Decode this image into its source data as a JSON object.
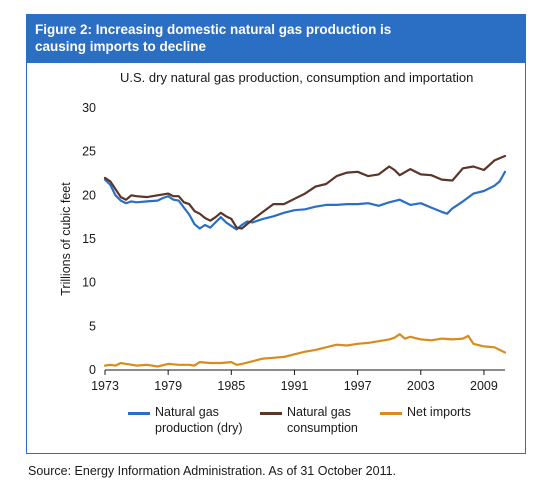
{
  "figure": {
    "title": "Figure 2: Increasing domestic natural gas production is causing imports to decline",
    "frame_color": "#2a6fc4"
  },
  "source": "Source: Energy Information Administration. As of 31 October 2011.",
  "chart_data": {
    "type": "line",
    "title": "U.S. dry natural gas production, consumption and importation",
    "xlabel": "",
    "ylabel": "Trillions of cubic feet",
    "xlim": [
      1973,
      2011
    ],
    "ylim": [
      0,
      30
    ],
    "x_ticks": [
      "1973",
      "1979",
      "1985",
      "1991",
      "1997",
      "2003",
      "2009"
    ],
    "y_ticks": [
      "0",
      "5",
      "10",
      "15",
      "20",
      "25",
      "30"
    ],
    "grid": false,
    "legend_position": "bottom",
    "series": [
      {
        "name": "Natural gas production (dry)",
        "color": "#2a6fc4",
        "x": [
          1973.0,
          1973.5,
          1974.0,
          1974.5,
          1975.0,
          1975.5,
          1976.0,
          1977.0,
          1978.0,
          1978.5,
          1979.0,
          1979.5,
          1980.0,
          1980.5,
          1981.0,
          1981.5,
          1982.0,
          1982.5,
          1983.0,
          1983.5,
          1984.0,
          1984.5,
          1985.0,
          1985.5,
          1986.0,
          1986.5,
          1987.0,
          1988.0,
          1989.0,
          1990.0,
          1991.0,
          1992.0,
          1993.0,
          1994.0,
          1995.0,
          1996.0,
          1997.0,
          1998.0,
          1999.0,
          2000.0,
          2001.0,
          2002.0,
          2003.0,
          2004.0,
          2005.0,
          2005.5,
          2006.0,
          2007.0,
          2008.0,
          2009.0,
          2010.0,
          2010.5,
          2011.0
        ],
        "values": [
          21.8,
          21.2,
          20.0,
          19.4,
          19.1,
          19.3,
          19.2,
          19.3,
          19.4,
          19.7,
          19.9,
          19.5,
          19.4,
          18.6,
          17.8,
          16.7,
          16.2,
          16.6,
          16.3,
          16.9,
          17.5,
          16.9,
          16.5,
          16.1,
          16.6,
          17.0,
          16.9,
          17.3,
          17.6,
          18.0,
          18.3,
          18.4,
          18.7,
          18.9,
          18.9,
          19.0,
          19.0,
          19.1,
          18.8,
          19.2,
          19.5,
          18.9,
          19.1,
          18.6,
          18.1,
          17.9,
          18.5,
          19.3,
          20.2,
          20.5,
          21.1,
          21.6,
          22.7
        ]
      },
      {
        "name": "Natural gas consumption",
        "color": "#5a3528",
        "x": [
          1973.0,
          1973.5,
          1974.0,
          1974.5,
          1975.0,
          1975.5,
          1976.0,
          1977.0,
          1978.0,
          1979.0,
          1979.5,
          1980.0,
          1980.5,
          1981.0,
          1981.5,
          1982.0,
          1982.5,
          1983.0,
          1983.5,
          1984.0,
          1984.5,
          1985.0,
          1985.5,
          1986.0,
          1987.0,
          1988.0,
          1989.0,
          1990.0,
          1991.0,
          1992.0,
          1993.0,
          1994.0,
          1995.0,
          1996.0,
          1997.0,
          1998.0,
          1999.0,
          2000.0,
          2000.5,
          2001.0,
          2002.0,
          2003.0,
          2004.0,
          2005.0,
          2006.0,
          2007.0,
          2008.0,
          2009.0,
          2010.0,
          2011.0
        ],
        "values": [
          22.0,
          21.6,
          20.7,
          19.8,
          19.5,
          20.0,
          19.9,
          19.8,
          20.0,
          20.2,
          19.9,
          19.9,
          19.2,
          19.0,
          18.2,
          17.9,
          17.4,
          17.1,
          17.5,
          18.0,
          17.6,
          17.3,
          16.3,
          16.2,
          17.2,
          18.1,
          19.0,
          19.0,
          19.6,
          20.2,
          21.0,
          21.3,
          22.2,
          22.6,
          22.7,
          22.2,
          22.4,
          23.3,
          22.9,
          22.3,
          23.0,
          22.4,
          22.3,
          21.8,
          21.7,
          23.1,
          23.3,
          22.9,
          24.0,
          24.5
        ]
      },
      {
        "name": "Net imports",
        "color": "#d98c1a",
        "x": [
          1973.0,
          1973.5,
          1974.0,
          1974.5,
          1975.0,
          1976.0,
          1977.0,
          1978.0,
          1979.0,
          1980.0,
          1981.0,
          1981.5,
          1982.0,
          1983.0,
          1984.0,
          1985.0,
          1985.5,
          1986.0,
          1987.0,
          1988.0,
          1989.0,
          1990.0,
          1991.0,
          1992.0,
          1993.0,
          1994.0,
          1995.0,
          1996.0,
          1997.0,
          1998.0,
          1999.0,
          2000.0,
          2000.5,
          2001.0,
          2001.5,
          2002.0,
          2003.0,
          2004.0,
          2005.0,
          2006.0,
          2007.0,
          2007.5,
          2008.0,
          2009.0,
          2010.0,
          2011.0
        ],
        "values": [
          0.5,
          0.6,
          0.5,
          0.8,
          0.7,
          0.5,
          0.6,
          0.4,
          0.7,
          0.6,
          0.6,
          0.5,
          0.9,
          0.8,
          0.8,
          0.9,
          0.6,
          0.7,
          1.0,
          1.3,
          1.4,
          1.5,
          1.8,
          2.1,
          2.3,
          2.6,
          2.9,
          2.8,
          3.0,
          3.1,
          3.3,
          3.5,
          3.7,
          4.1,
          3.6,
          3.8,
          3.5,
          3.4,
          3.6,
          3.5,
          3.6,
          3.9,
          3.0,
          2.7,
          2.6,
          2.0
        ]
      }
    ]
  }
}
